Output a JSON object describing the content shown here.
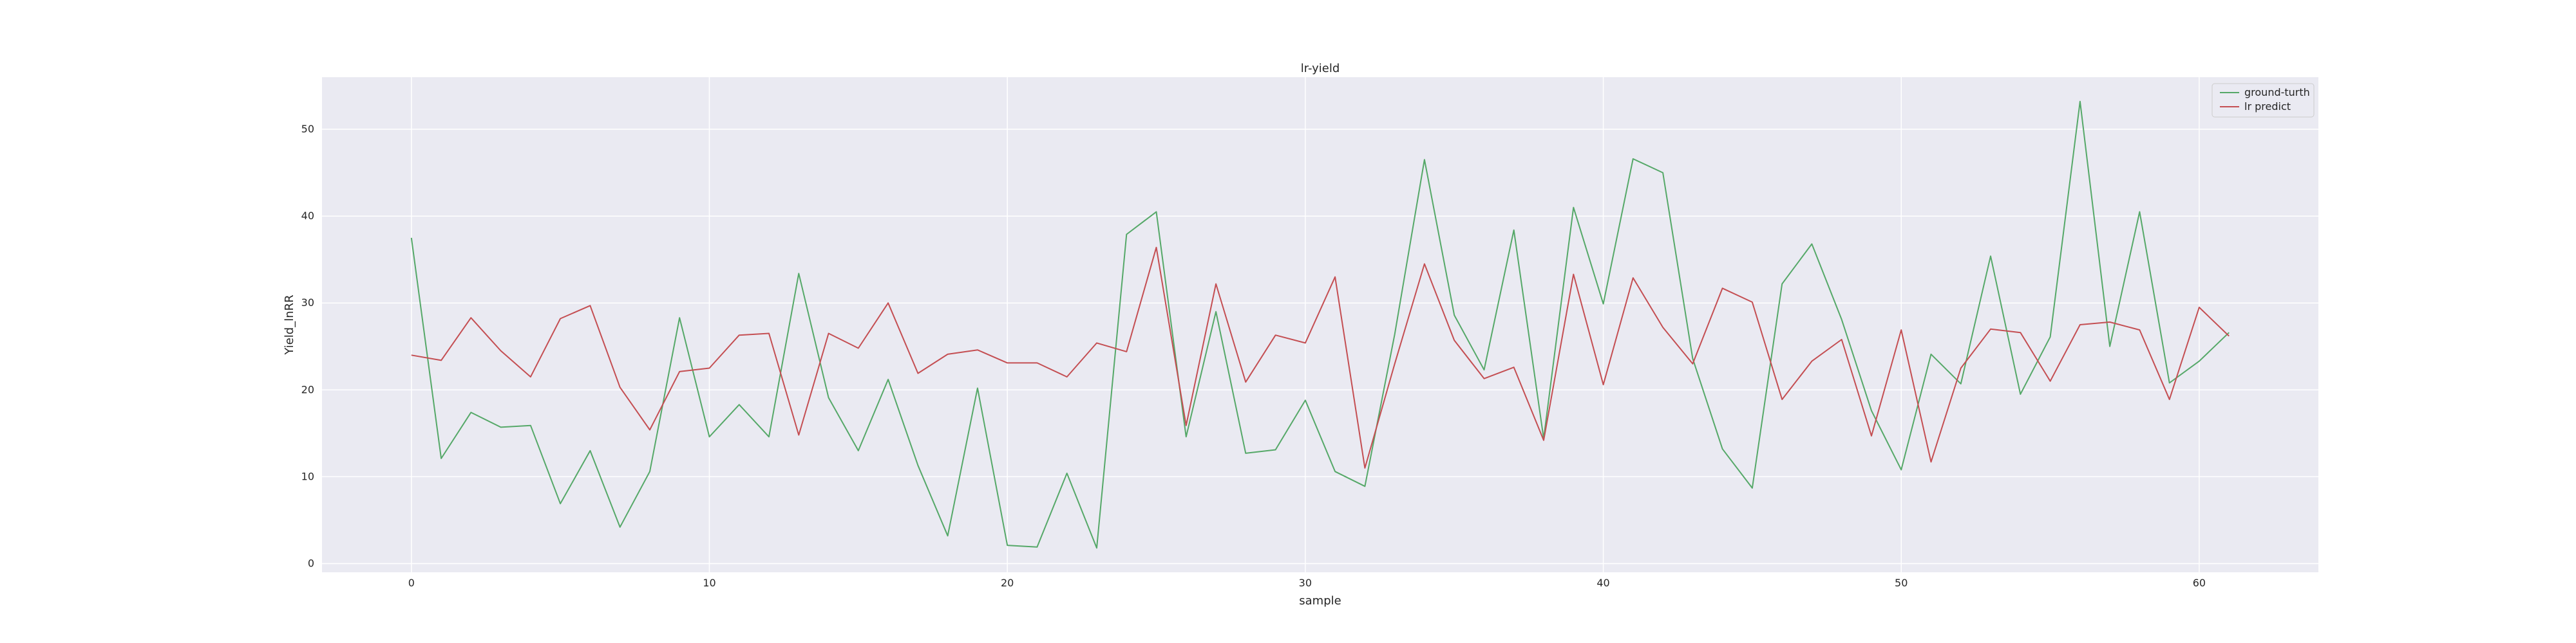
{
  "chart_data": {
    "type": "line",
    "title": "lr-yield",
    "xlabel": "sample",
    "ylabel": "Yield_lnRR",
    "xlim": [
      -3,
      64
    ],
    "ylim": [
      -1,
      56
    ],
    "xticks": [
      0,
      10,
      20,
      30,
      40,
      50,
      60
    ],
    "yticks": [
      0,
      10,
      20,
      30,
      40,
      50
    ],
    "grid": true,
    "legend_position": "top-right",
    "x": [
      0,
      1,
      2,
      3,
      4,
      5,
      6,
      7,
      8,
      9,
      10,
      11,
      12,
      13,
      14,
      15,
      16,
      17,
      18,
      19,
      20,
      21,
      22,
      23,
      24,
      25,
      26,
      27,
      28,
      29,
      30,
      31,
      32,
      33,
      34,
      35,
      36,
      37,
      38,
      39,
      40,
      41,
      42,
      43,
      44,
      45,
      46,
      47,
      48,
      49,
      50,
      51,
      52,
      53,
      54,
      55,
      56,
      57,
      58,
      59,
      60,
      61
    ],
    "series": [
      {
        "name": "ground-turth",
        "color": "#55a868",
        "values": [
          37.5,
          12.1,
          17.4,
          15.7,
          15.9,
          6.9,
          13.0,
          4.2,
          10.6,
          28.3,
          14.6,
          18.3,
          14.6,
          33.4,
          19.1,
          13.0,
          21.2,
          11.3,
          3.2,
          20.2,
          2.1,
          1.9,
          10.4,
          1.8,
          37.9,
          40.5,
          14.6,
          29.0,
          12.7,
          13.1,
          18.8,
          10.6,
          8.9,
          26.4,
          46.5,
          28.6,
          22.3,
          38.4,
          14.4,
          41.0,
          29.9,
          46.6,
          45.0,
          23.6,
          13.2,
          8.7,
          32.2,
          36.8,
          28.1,
          17.6,
          10.8,
          24.1,
          20.7,
          35.4,
          19.5,
          26.1,
          53.2,
          25.0,
          40.5,
          20.8,
          23.3,
          26.6
        ]
      },
      {
        "name": "lr predict",
        "color": "#c44e52",
        "values": [
          24.0,
          23.4,
          28.3,
          24.5,
          21.5,
          28.2,
          29.7,
          20.3,
          15.4,
          22.1,
          22.5,
          26.3,
          26.5,
          14.8,
          26.5,
          24.8,
          30.0,
          21.9,
          24.1,
          24.6,
          23.1,
          23.1,
          21.5,
          25.4,
          24.4,
          36.4,
          15.9,
          32.2,
          20.9,
          26.3,
          25.4,
          33.0,
          11.0,
          23.0,
          34.5,
          25.7,
          21.3,
          22.6,
          14.2,
          33.3,
          20.6,
          32.9,
          27.2,
          23.0,
          31.7,
          30.1,
          18.9,
          23.3,
          25.8,
          14.7,
          26.9,
          11.7,
          22.5,
          27.0,
          26.6,
          21.0,
          27.5,
          27.8,
          26.9,
          18.9,
          29.5,
          26.2
        ]
      }
    ]
  }
}
